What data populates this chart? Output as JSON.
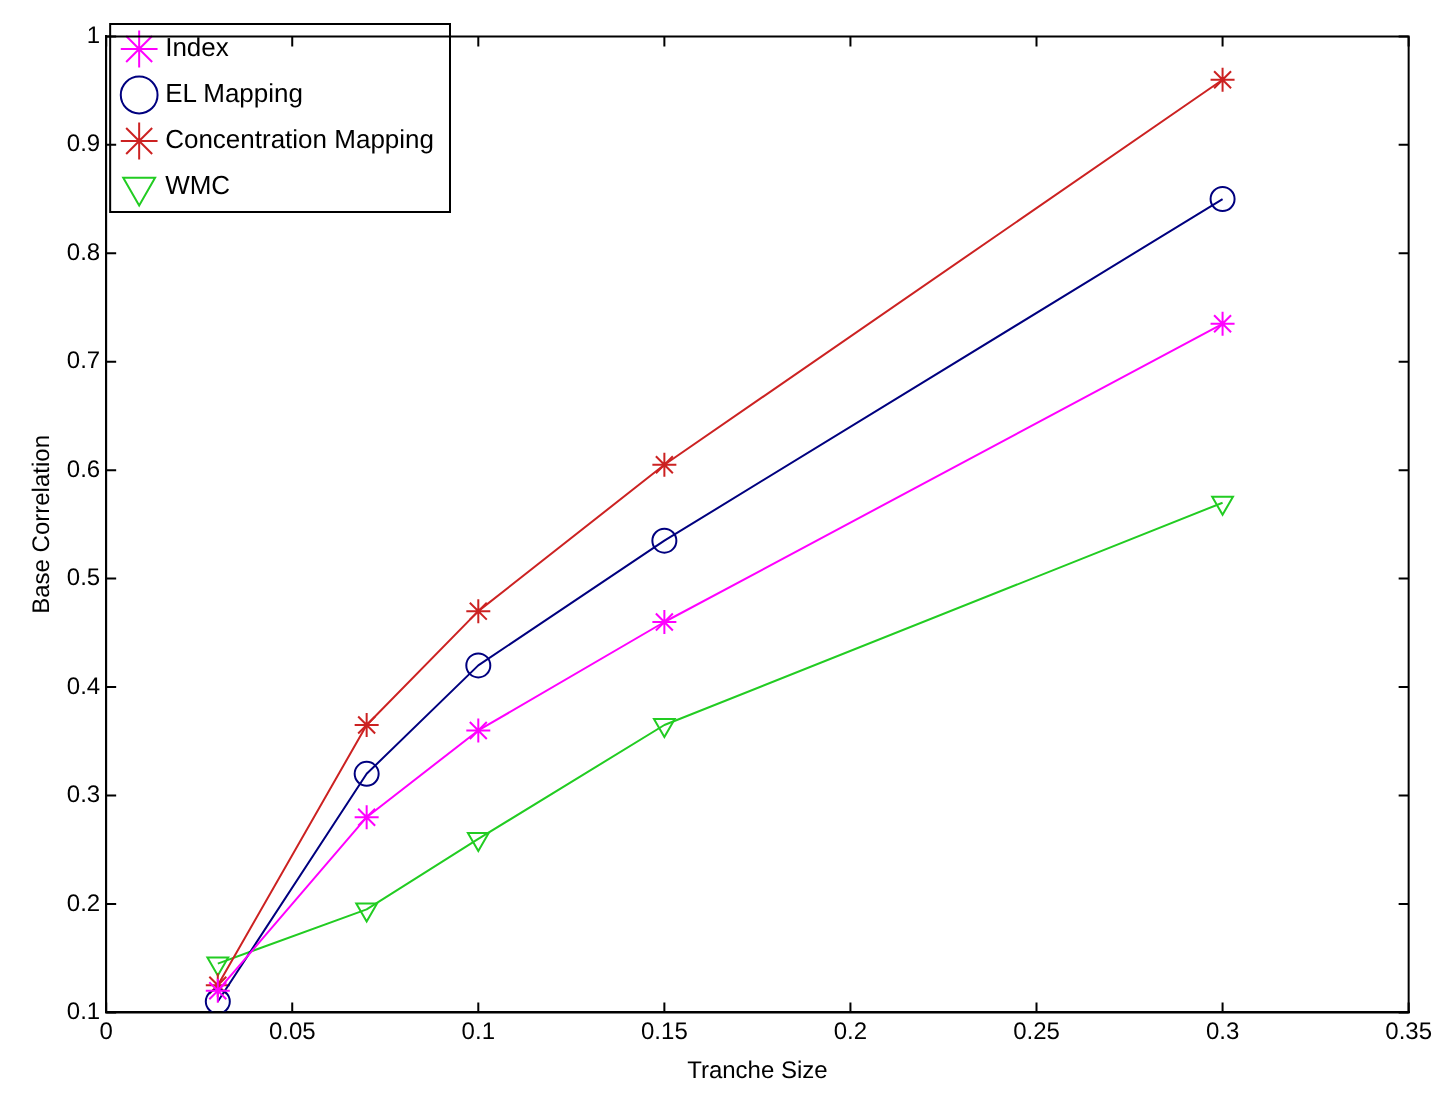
{
  "chart_data": {
    "type": "line",
    "xlabel": "Tranche Size",
    "ylabel": "Base Correlation",
    "x": [
      0.03,
      0.07,
      0.1,
      0.15,
      0.3
    ],
    "series": [
      {
        "name": "Index",
        "color": "#ff00ff",
        "marker": "cross",
        "values": [
          0.12,
          0.28,
          0.36,
          0.46,
          0.735
        ]
      },
      {
        "name": "EL Mapping",
        "color": "#00007f",
        "marker": "circle",
        "values": [
          0.11,
          0.32,
          0.42,
          0.535,
          0.85
        ]
      },
      {
        "name": "Concentration Mapping",
        "color": "#cc2222",
        "marker": "cross",
        "values": [
          0.125,
          0.365,
          0.47,
          0.605,
          0.96
        ]
      },
      {
        "name": "WMC",
        "color": "#22cc22",
        "marker": "triangle",
        "values": [
          0.145,
          0.195,
          0.26,
          0.365,
          0.57
        ]
      }
    ],
    "xlim": [
      0,
      0.35
    ],
    "xticks": [
      0,
      0.05,
      0.1,
      0.15,
      0.2,
      0.25,
      0.3,
      0.35
    ],
    "ylim": [
      0.1,
      1
    ],
    "yticks": [
      0.1,
      0.2,
      0.3,
      0.4,
      0.5,
      0.6,
      0.7,
      0.8,
      0.9,
      1
    ],
    "grid": false,
    "legend": "top left",
    "line_style": "solid"
  }
}
